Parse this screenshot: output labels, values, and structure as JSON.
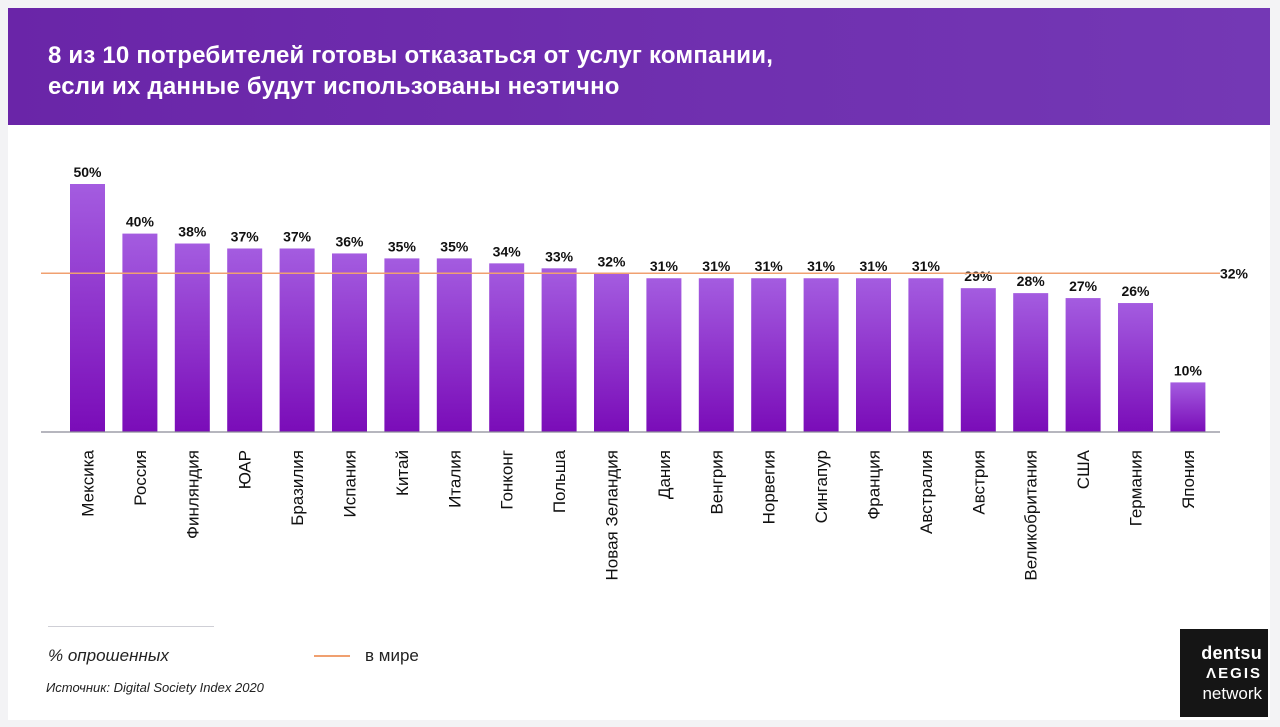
{
  "header": {
    "title_line1": "8 из 10 потребителей готовы отказаться от услуг компании,",
    "title_line2": "если их данные будут использованы неэтично"
  },
  "chart_data": {
    "type": "bar",
    "categories": [
      "Мексика",
      "Россия",
      "Финляндия",
      "ЮАР",
      "Бразилия",
      "Испания",
      "Китай",
      "Италия",
      "Гонконг",
      "Польша",
      "Новая Зеландия",
      "Дания",
      "Венгрия",
      "Норвегия",
      "Сингапур",
      "Франция",
      "Австралия",
      "Австрия",
      "Великобритания",
      "США",
      "Германия",
      "Япония"
    ],
    "values": [
      50,
      40,
      38,
      37,
      37,
      36,
      35,
      35,
      34,
      33,
      32,
      31,
      31,
      31,
      31,
      31,
      31,
      29,
      28,
      27,
      26,
      10
    ],
    "value_labels": [
      "50%",
      "40%",
      "38%",
      "37%",
      "37%",
      "36%",
      "35%",
      "35%",
      "34%",
      "33%",
      "32%",
      "31%",
      "31%",
      "31%",
      "31%",
      "31%",
      "31%",
      "29%",
      "28%",
      "27%",
      "26%",
      "10%"
    ],
    "reference_line": {
      "value": 32,
      "label": "32%",
      "color": "#f0a070"
    },
    "ylim": [
      0,
      50
    ],
    "bar_color_top": "#a45ce0",
    "bar_color_bottom": "#7a0cb8",
    "grid": false
  },
  "legend": {
    "series_label": "% опрошенных",
    "reference_label": "в мире"
  },
  "footer": {
    "source": "Источник: Digital Society Index 2020"
  },
  "logo": {
    "line1": "dentsu",
    "line2": "ΛEGIS",
    "line3": "network"
  }
}
